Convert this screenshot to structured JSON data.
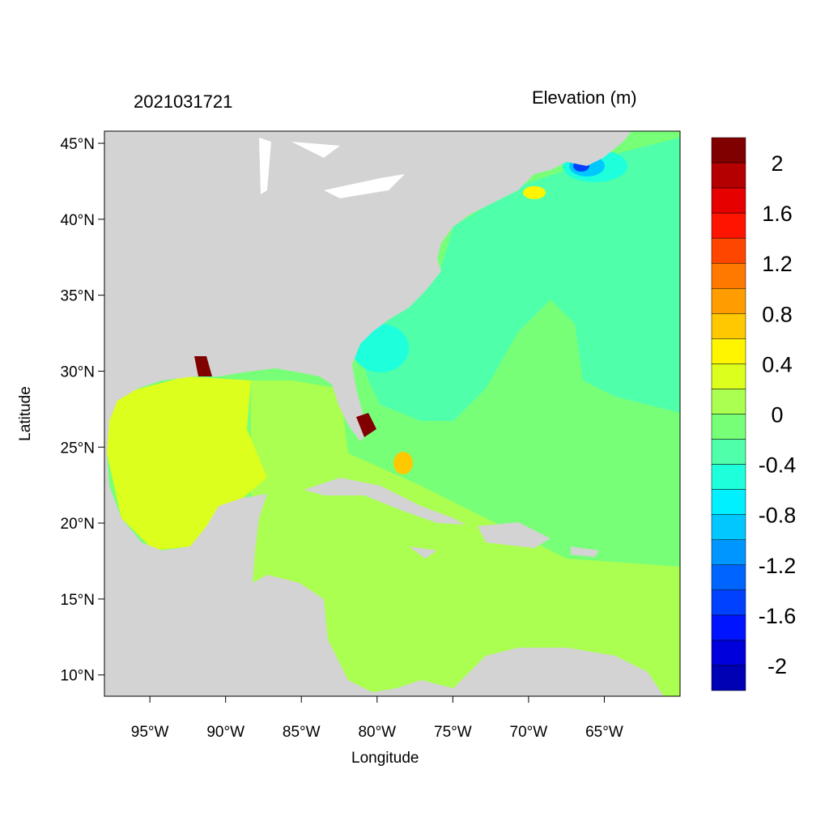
{
  "title_left": "2021031721",
  "title_right": "Elevation (m)",
  "xlabel": "Longitude",
  "ylabel": "Latitude",
  "lon_ticks": [
    "95°W",
    "90°W",
    "85°W",
    "80°W",
    "75°W",
    "70°W",
    "65°W"
  ],
  "lon_values": [
    -95,
    -90,
    -85,
    -80,
    -75,
    -70,
    -65
  ],
  "lat_ticks": [
    "45°N",
    "40°N",
    "35°N",
    "30°N",
    "25°N",
    "20°N",
    "15°N",
    "10°N"
  ],
  "lat_values": [
    45,
    40,
    35,
    30,
    25,
    20,
    15,
    10
  ],
  "extent": {
    "lon": [
      -98,
      -60
    ],
    "lat": [
      8.6,
      45.8
    ]
  },
  "colorbar": {
    "labels": [
      "2",
      "1.6",
      "1.2",
      "0.8",
      "0.4",
      "0",
      "-0.4",
      "-0.8",
      "-1.2",
      "-1.6",
      "-2"
    ],
    "label_values": [
      2,
      1.6,
      1.2,
      0.8,
      0.4,
      0,
      -0.4,
      -0.8,
      -1.2,
      -1.6,
      -2
    ],
    "step": 0.2,
    "colors": [
      "#800000",
      "#b40000",
      "#e60000",
      "#ff1400",
      "#ff4600",
      "#ff7800",
      "#ff9c00",
      "#ffc800",
      "#fff500",
      "#dcff1e",
      "#aaff50",
      "#78ff78",
      "#50ffaa",
      "#1effdc",
      "#00f0ff",
      "#00c8ff",
      "#0096ff",
      "#0064ff",
      "#0040ff",
      "#0014ff",
      "#0000dc",
      "#0000b4"
    ]
  },
  "colors": {
    "land": "#d3d3d3",
    "lakes": "#ffffff"
  }
}
